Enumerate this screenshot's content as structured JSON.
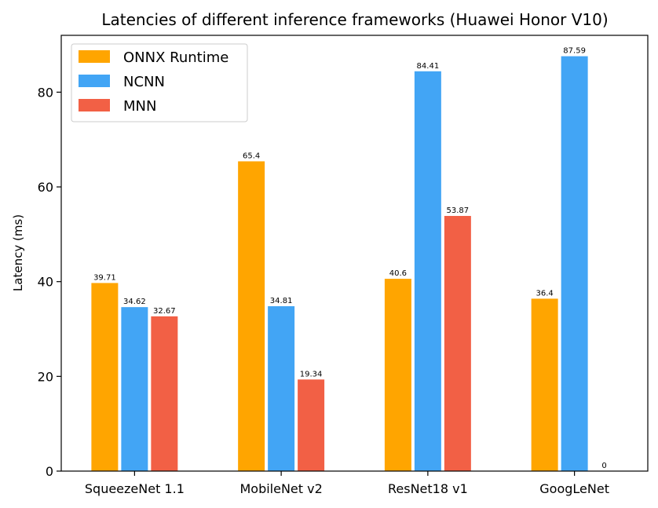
{
  "chart_data": {
    "type": "bar",
    "title": "Latencies of different inference frameworks (Huawei Honor V10)",
    "xlabel": "",
    "ylabel": "Latency (ms)",
    "ylim": [
      0,
      92
    ],
    "yticks": [
      0,
      20,
      40,
      60,
      80
    ],
    "categories": [
      "SqueezeNet 1.1",
      "MobileNet v2",
      "ResNet18 v1",
      "GoogLeNet"
    ],
    "series": [
      {
        "name": "ONNX Runtime",
        "color": "#ffa500",
        "values": [
          39.71,
          65.4,
          40.6,
          36.4
        ],
        "labels": [
          "39.71",
          "65.4",
          "40.6",
          "36.4"
        ]
      },
      {
        "name": "NCNN",
        "color": "#42a5f5",
        "values": [
          34.62,
          34.81,
          84.41,
          87.59
        ],
        "labels": [
          "34.62",
          "34.81",
          "84.41",
          "87.59"
        ]
      },
      {
        "name": "MNN",
        "color": "#f26045",
        "values": [
          32.67,
          19.34,
          53.87,
          0
        ],
        "labels": [
          "32.67",
          "19.34",
          "53.87",
          "0"
        ]
      }
    ],
    "legend_position": "top-left",
    "grid": false
  }
}
